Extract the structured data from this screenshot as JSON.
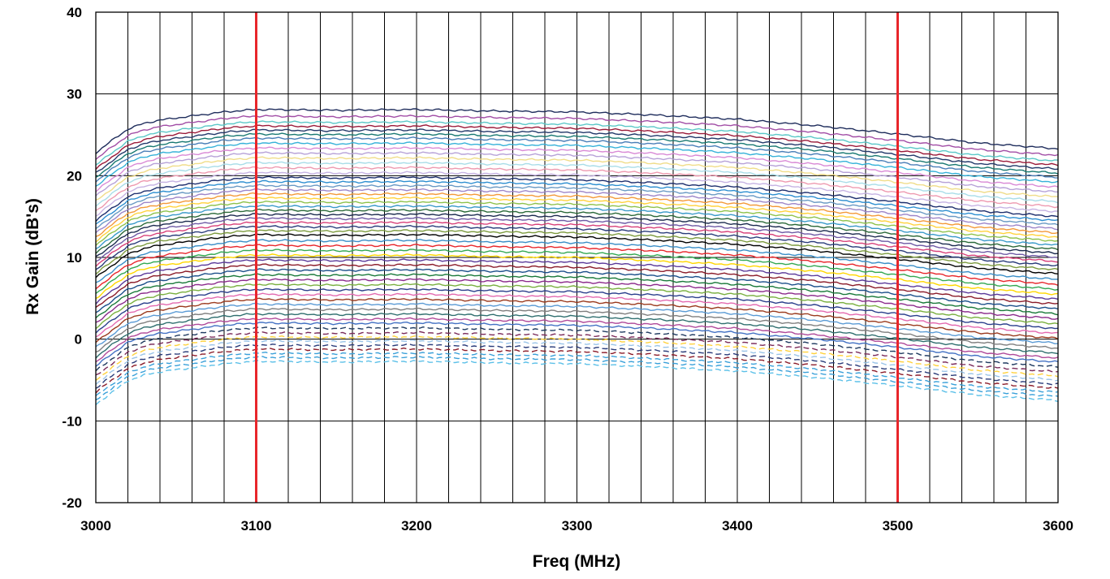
{
  "chart_data": {
    "type": "line",
    "title": "",
    "xlabel": "Freq (MHz)",
    "ylabel": "Rx Gain (dB's)",
    "xlim": [
      3000,
      3600
    ],
    "ylim": [
      -20,
      40
    ],
    "x_ticks": [
      "3000",
      "3100",
      "3200",
      "3300",
      "3400",
      "3500",
      "3600"
    ],
    "y_ticks": [
      "-20",
      "-10",
      "0",
      "10",
      "20",
      "30",
      "40"
    ],
    "x_grid_step": 20,
    "y_grid_step": 10,
    "grid": true,
    "legend": "none",
    "markers": [
      {
        "x": 3100,
        "color": "#e8262b"
      },
      {
        "x": 3500,
        "color": "#e8262b"
      }
    ],
    "curve_profile": {
      "x": [
        3000,
        3010,
        3020,
        3030,
        3040,
        3060,
        3080,
        3100,
        3150,
        3200,
        3250,
        3300,
        3350,
        3400,
        3450,
        3500,
        3550,
        3600
      ],
      "offset_db": [
        -5.5,
        -4.0,
        -2.6,
        -1.9,
        -1.5,
        -1.0,
        -0.5,
        -0.2,
        -0.3,
        -0.2,
        -0.4,
        -0.5,
        -0.9,
        -1.4,
        -2.2,
        -3.2,
        -4.3,
        -5.0
      ]
    },
    "series": [
      {
        "level_db": 28.3,
        "color": "#1f2d5c",
        "dash": false
      },
      {
        "level_db": 27.5,
        "color": "#a24ea6",
        "dash": false
      },
      {
        "level_db": 26.8,
        "color": "#5cc8c8",
        "dash": false
      },
      {
        "level_db": 26.3,
        "color": "#9b1b3a",
        "dash": false
      },
      {
        "level_db": 25.8,
        "color": "#243a6b",
        "dash": false
      },
      {
        "level_db": 25.3,
        "color": "#1a7a73",
        "dash": false
      },
      {
        "level_db": 24.8,
        "color": "#4a7fb8",
        "dash": false
      },
      {
        "level_db": 24.2,
        "color": "#37b2d9",
        "dash": false
      },
      {
        "level_db": 23.6,
        "color": "#d98ad6",
        "dash": false
      },
      {
        "level_db": 23.0,
        "color": "#b7a2d8",
        "dash": false
      },
      {
        "level_db": 22.4,
        "color": "#f0dd8a",
        "dash": false
      },
      {
        "level_db": 21.8,
        "color": "#a9dde8",
        "dash": false
      },
      {
        "level_db": 21.2,
        "color": "#ee9ab0",
        "dash": false
      },
      {
        "level_db": 20.6,
        "color": "#c6b3e3",
        "dash": false
      },
      {
        "level_db": 20.0,
        "color": "#1e2f6e",
        "dash": false
      },
      {
        "level_db": 19.5,
        "color": "#2e8fd1",
        "dash": false
      },
      {
        "level_db": 19.0,
        "color": "#6a9ac4",
        "dash": false
      },
      {
        "level_db": 18.5,
        "color": "#9e86c9",
        "dash": false
      },
      {
        "level_db": 18.0,
        "color": "#f39a3a",
        "dash": false
      },
      {
        "level_db": 17.5,
        "color": "#ffd23c",
        "dash": false
      },
      {
        "level_db": 17.0,
        "color": "#8fc24d",
        "dash": false
      },
      {
        "level_db": 16.5,
        "color": "#3a9ac9",
        "dash": false
      },
      {
        "level_db": 16.0,
        "color": "#2c6a3a",
        "dash": false
      },
      {
        "level_db": 15.5,
        "color": "#1c2b4f",
        "dash": false
      },
      {
        "level_db": 15.0,
        "color": "#6f5aa5",
        "dash": false
      },
      {
        "level_db": 14.5,
        "color": "#d8417a",
        "dash": false
      },
      {
        "level_db": 14.0,
        "color": "#2a3c7a",
        "dash": false
      },
      {
        "level_db": 13.5,
        "color": "#7d9b3f",
        "dash": false
      },
      {
        "level_db": 13.0,
        "color": "#000000",
        "dash": false
      },
      {
        "level_db": 12.3,
        "color": "#3a8ec7",
        "dash": false
      },
      {
        "level_db": 11.7,
        "color": "#e8262b",
        "dash": false
      },
      {
        "level_db": 11.1,
        "color": "#34a853",
        "dash": false
      },
      {
        "level_db": 10.5,
        "color": "#ffd700",
        "dash": false
      },
      {
        "level_db": 9.9,
        "color": "#5b3a9a",
        "dash": false
      },
      {
        "level_db": 9.3,
        "color": "#8b1c2a",
        "dash": false
      },
      {
        "level_db": 8.7,
        "color": "#1b4f8a",
        "dash": false
      },
      {
        "level_db": 8.1,
        "color": "#1a7a3a",
        "dash": false
      },
      {
        "level_db": 7.5,
        "color": "#8c2b8c",
        "dash": false
      },
      {
        "level_db": 6.9,
        "color": "#7ab040",
        "dash": false
      },
      {
        "level_db": 6.3,
        "color": "#2b3f8c",
        "dash": false
      },
      {
        "level_db": 5.7,
        "color": "#e36ab0",
        "dash": false
      },
      {
        "level_db": 5.1,
        "color": "#9b3b1f",
        "dash": false
      },
      {
        "level_db": 4.5,
        "color": "#5b9bd5",
        "dash": false
      },
      {
        "level_db": 3.9,
        "color": "#7f7f7f",
        "dash": false
      },
      {
        "level_db": 3.3,
        "color": "#2f6f6f",
        "dash": false
      },
      {
        "level_db": 2.7,
        "color": "#b04a9a",
        "dash": false
      },
      {
        "level_db": 2.2,
        "color": "#4472c4",
        "dash": false
      },
      {
        "level_db": 1.6,
        "color": "#1f3a60",
        "dash": true
      },
      {
        "level_db": 1.0,
        "color": "#7b2b5a",
        "dash": true
      },
      {
        "level_db": 0.5,
        "color": "#ffd23c",
        "dash": true
      },
      {
        "level_db": 0.0,
        "color": "#9ac4e8",
        "dash": true
      },
      {
        "level_db": -0.5,
        "color": "#2a3c7a",
        "dash": true
      },
      {
        "level_db": -1.0,
        "color": "#8b1c2a",
        "dash": true
      },
      {
        "level_db": -1.5,
        "color": "#3aa0d9",
        "dash": true
      },
      {
        "level_db": -2.0,
        "color": "#3aa0d9",
        "dash": true
      },
      {
        "level_db": -2.5,
        "color": "#5cc0e8",
        "dash": true
      }
    ]
  }
}
